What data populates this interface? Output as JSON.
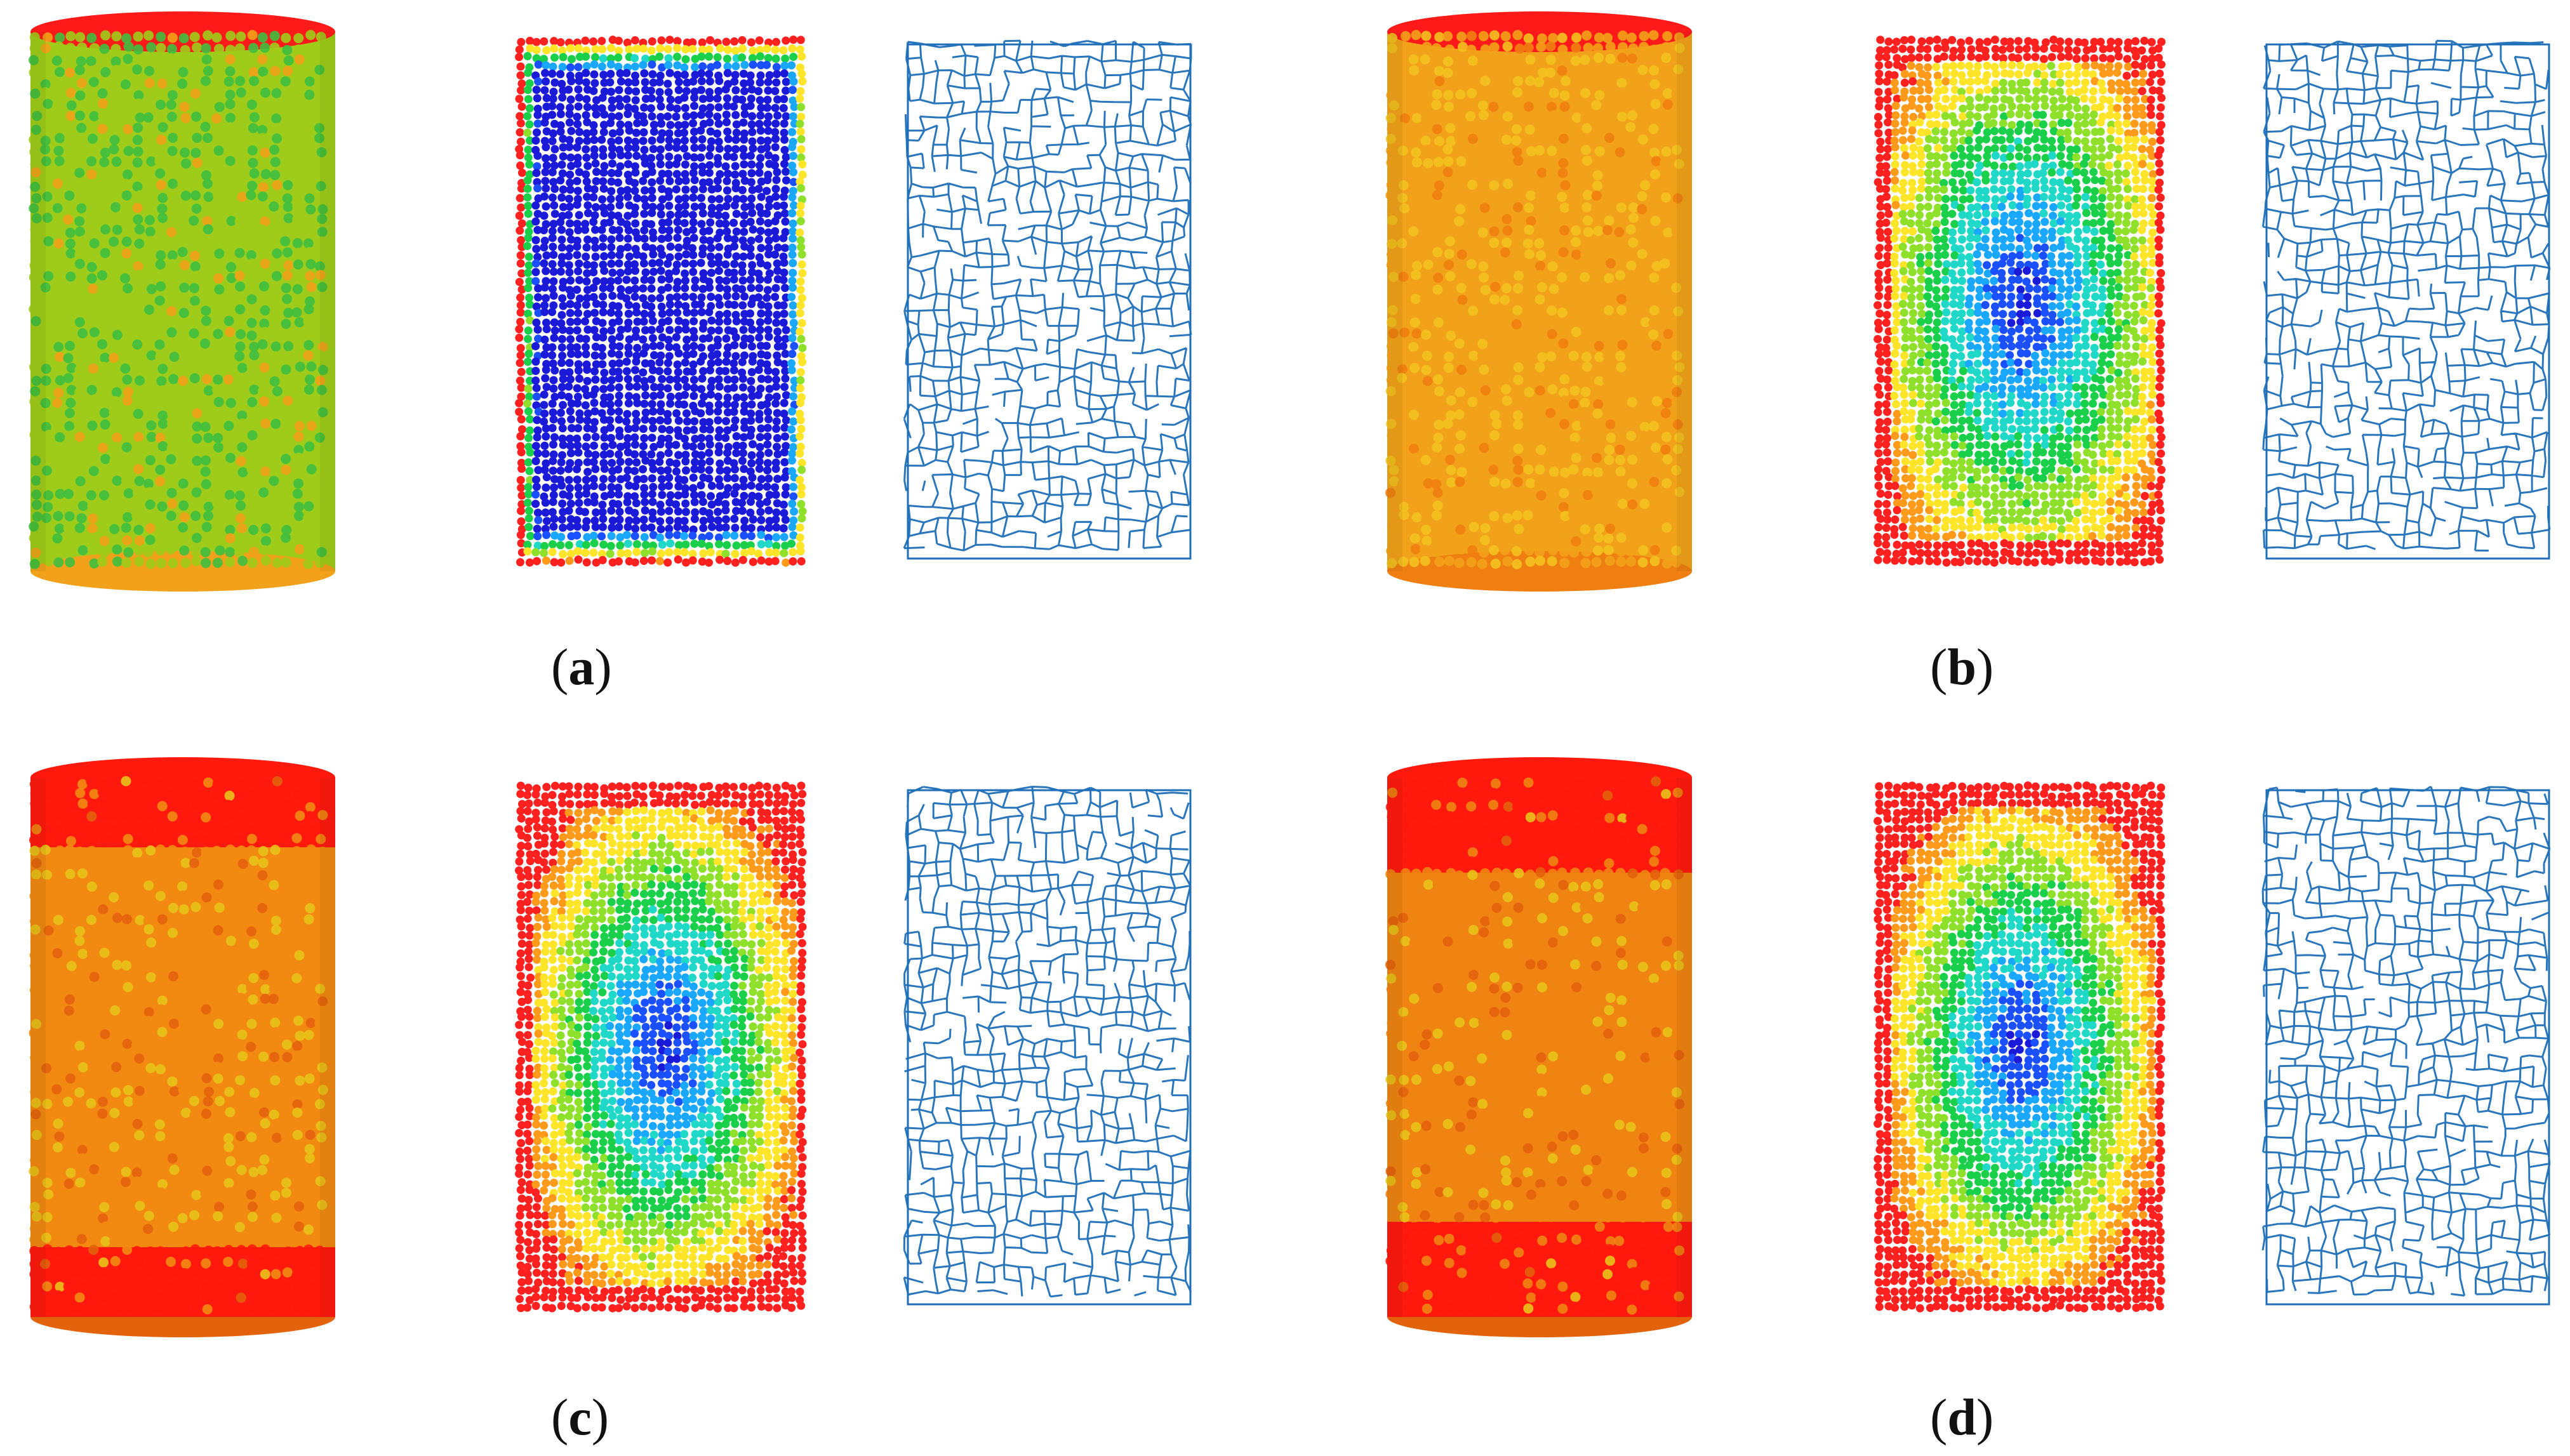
{
  "panels": [
    {
      "id": "a",
      "caption_open": "(",
      "caption_letter": "a",
      "caption_close": ")",
      "cylinder": {
        "body": "#9fcc1a",
        "spot": "#3fbf3f",
        "ends": "#ff1a1a",
        "edge": "#f2a21a",
        "spot_density": 0.35
      },
      "section": {
        "levels": [
          "#ff2020",
          "#ff9a1a",
          "#ffe52a",
          "#8ee02a",
          "#1ad04a",
          "#20d8c8",
          "#1aa8ff",
          "#1a50ff",
          "#1a1ad8"
        ],
        "rings": 0.18,
        "core": 1.0
      },
      "network": {
        "color": "#1f6fb8"
      }
    },
    {
      "id": "b",
      "caption_open": "(",
      "caption_letter": "b",
      "caption_close": ")",
      "cylinder": {
        "body": "#f2a21a",
        "spot": "#f3c21f",
        "ends": "#ff1a1a",
        "edge": "#ef7f10",
        "spot_density": 0.25
      },
      "section": {
        "levels": [
          "#ff2020",
          "#ff9a1a",
          "#ffe52a",
          "#8ee02a",
          "#1ad04a",
          "#20d8c8",
          "#1aa8ff",
          "#1a50ff",
          "#1a1ad8"
        ],
        "rings": 0.55,
        "core": 0.7
      },
      "network": {
        "color": "#1f6fb8"
      }
    },
    {
      "id": "c",
      "caption_open": "(",
      "caption_letter": "c",
      "caption_close": ")",
      "cylinder": {
        "body": "#f28a12",
        "spot": "#e8c21a",
        "ends": "#ff1a0d",
        "edge": "#e3620c",
        "spot_density": 0.15
      },
      "section": {
        "levels": [
          "#ff2020",
          "#ff9a1a",
          "#ffe52a",
          "#8ee02a",
          "#1ad04a",
          "#20d8c8",
          "#1aa8ff",
          "#1a50ff",
          "#1a1ad8"
        ],
        "rings": 0.75,
        "core": 0.45
      },
      "network": {
        "color": "#1f6fb8"
      }
    },
    {
      "id": "d",
      "caption_open": "(",
      "caption_letter": "d",
      "caption_close": ")",
      "cylinder": {
        "body": "#f08412",
        "spot": "#e8c21a",
        "ends": "#ff1a0d",
        "edge": "#e3620c",
        "spot_density": 0.12
      },
      "section": {
        "levels": [
          "#ff2020",
          "#ff9a1a",
          "#ffe52a",
          "#8ee02a",
          "#1ad04a",
          "#20d8c8",
          "#1aa8ff",
          "#1a50ff",
          "#1a1ad8"
        ],
        "rings": 0.8,
        "core": 0.4
      },
      "network": {
        "color": "#1f6fb8"
      }
    }
  ]
}
